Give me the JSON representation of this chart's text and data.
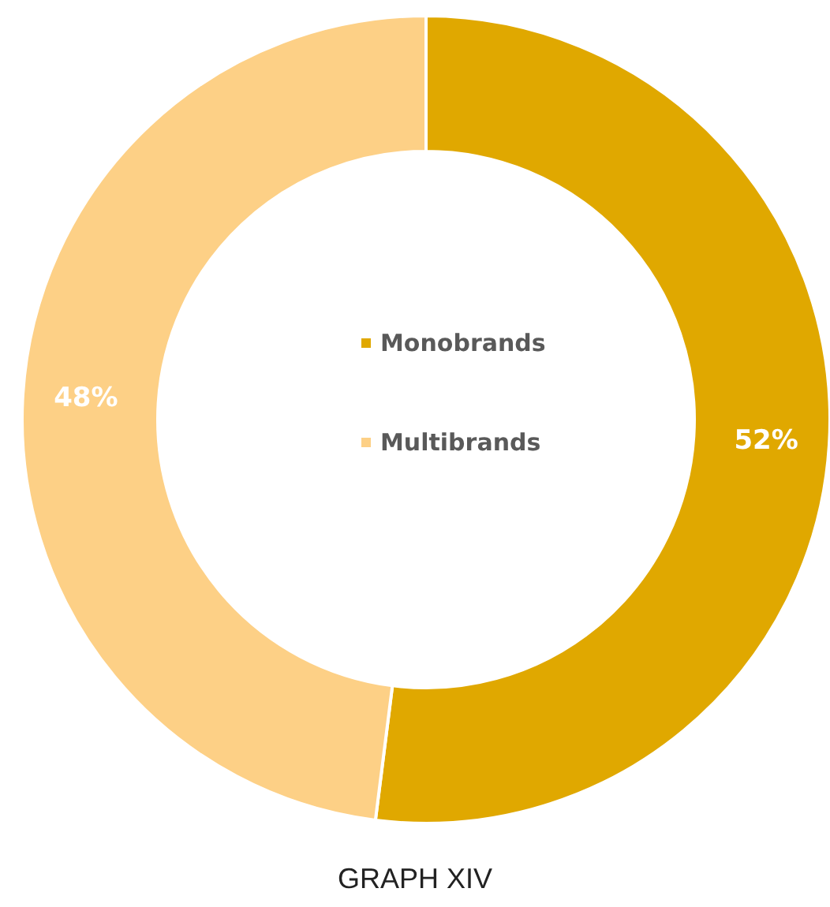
{
  "chart_data": {
    "type": "donut",
    "categories": [
      "Monobrands",
      "Multibrands"
    ],
    "values": [
      52,
      48
    ],
    "colors": [
      "#e0a800",
      "#fdd086"
    ],
    "value_labels": [
      "52%",
      "48%"
    ],
    "legend": "center",
    "annotations": [
      "GRAPH XIV"
    ]
  }
}
